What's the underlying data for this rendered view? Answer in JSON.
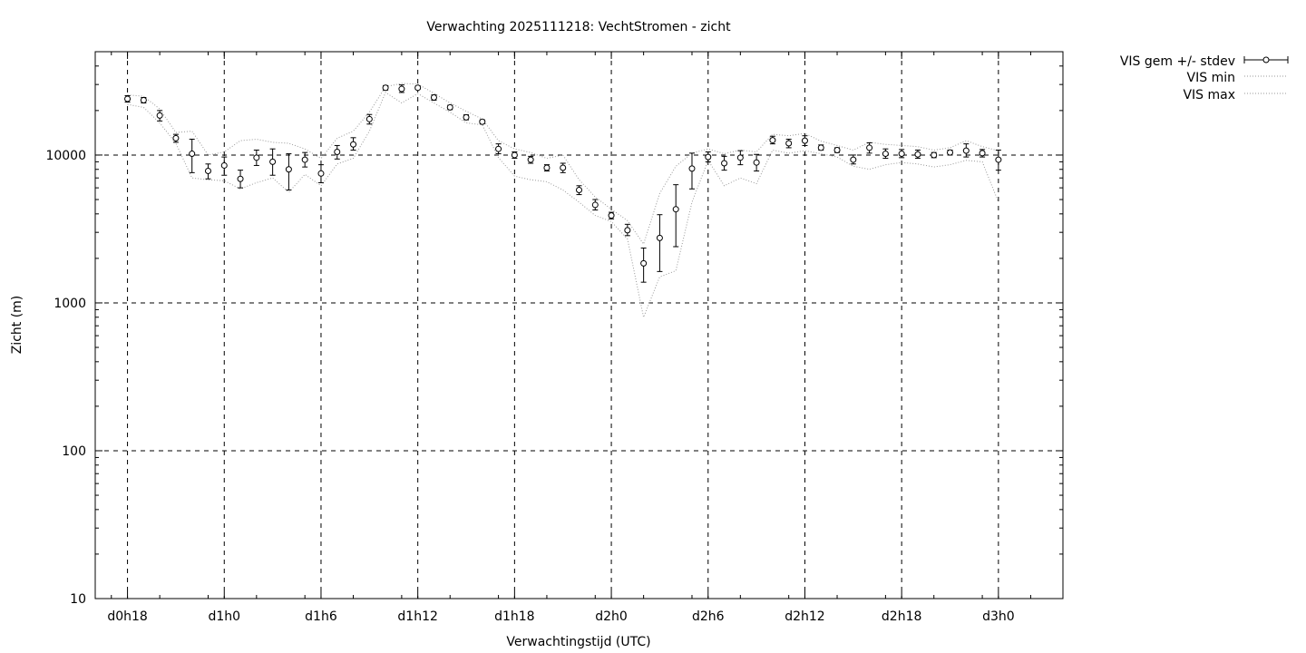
{
  "chart_data": {
    "type": "scatter",
    "title": "Verwachting 2025111218: VechtStromen - zicht",
    "xlabel": "Verwachtingstijd (UTC)",
    "ylabel": "Zicht (m)",
    "x_unit": "hours since d0h0",
    "xlim": [
      16,
      76
    ],
    "ylim": [
      10,
      50000
    ],
    "yscale": "log",
    "grid": true,
    "legend_position": "outside-top-right",
    "x_ticks": [
      {
        "x": 18,
        "label": "d0h18"
      },
      {
        "x": 24,
        "label": "d1h0"
      },
      {
        "x": 30,
        "label": "d1h6"
      },
      {
        "x": 36,
        "label": "d1h12"
      },
      {
        "x": 42,
        "label": "d1h18"
      },
      {
        "x": 48,
        "label": "d2h0"
      },
      {
        "x": 54,
        "label": "d2h6"
      },
      {
        "x": 60,
        "label": "d2h12"
      },
      {
        "x": 66,
        "label": "d2h18"
      },
      {
        "x": 72,
        "label": "d3h0"
      }
    ],
    "y_ticks": [
      {
        "y": 10,
        "label": "10"
      },
      {
        "y": 100,
        "label": "100"
      },
      {
        "y": 1000,
        "label": "1000"
      },
      {
        "y": 10000,
        "label": "10000"
      }
    ],
    "x": [
      18,
      19,
      20,
      21,
      22,
      23,
      24,
      25,
      26,
      27,
      28,
      29,
      30,
      31,
      32,
      33,
      34,
      35,
      36,
      37,
      38,
      39,
      40,
      41,
      42,
      43,
      44,
      45,
      46,
      47,
      48,
      49,
      50,
      51,
      52,
      53,
      54,
      55,
      56,
      57,
      58,
      59,
      60,
      61,
      62,
      63,
      64,
      65,
      66,
      67,
      68,
      69,
      70,
      71,
      72
    ],
    "series": [
      {
        "name": "VIS gem +/- stdev",
        "style": "errorbars",
        "values": [
          24000,
          23500,
          18500,
          13000,
          10200,
          7800,
          8500,
          6900,
          9600,
          9000,
          8000,
          9300,
          7500,
          10500,
          11800,
          17500,
          28500,
          28000,
          28500,
          24500,
          21000,
          18000,
          16800,
          11000,
          10000,
          9300,
          8200,
          8200,
          5800,
          4600,
          3900,
          3100,
          1850,
          2750,
          4300,
          8100,
          9700,
          8800,
          9600,
          8900,
          12600,
          12000,
          12500,
          11200,
          10800,
          9300,
          11200,
          10200,
          10200,
          10100,
          10000,
          10400,
          10700,
          10300,
          9300
        ],
        "error_low": [
          22800,
          22500,
          17000,
          12200,
          7600,
          6900,
          7300,
          6000,
          8500,
          7300,
          5800,
          8300,
          6500,
          9400,
          10800,
          16200,
          27500,
          26500,
          27800,
          23500,
          20300,
          17300,
          16300,
          10200,
          9500,
          8800,
          7800,
          7600,
          5400,
          4250,
          3700,
          2850,
          1380,
          1630,
          2400,
          5900,
          9000,
          7900,
          8600,
          7800,
          11900,
          11200,
          11600,
          10800,
          10400,
          8700,
          10300,
          9500,
          9600,
          9500,
          9600,
          10000,
          9700,
          9700,
          7900
        ],
        "error_high": [
          25200,
          24500,
          20000,
          13800,
          12800,
          8700,
          9700,
          7900,
          10800,
          11000,
          10200,
          10400,
          8600,
          11600,
          13100,
          18800,
          29500,
          29800,
          29300,
          25500,
          21700,
          18700,
          17300,
          11900,
          10500,
          9800,
          8600,
          8800,
          6200,
          5000,
          4100,
          3400,
          2350,
          3950,
          6300,
          10300,
          10500,
          9800,
          10700,
          10100,
          13400,
          12800,
          13500,
          11700,
          11200,
          10000,
          12100,
          11000,
          10900,
          10800,
          10400,
          10800,
          11900,
          10900,
          10800
        ]
      },
      {
        "name": "VIS min",
        "style": "dotted",
        "values": [
          22000,
          21000,
          16500,
          12000,
          7000,
          6800,
          6700,
          5900,
          6500,
          7000,
          5600,
          7400,
          6200,
          8700,
          9500,
          14500,
          26500,
          22500,
          26000,
          22500,
          19500,
          16500,
          16000,
          9600,
          7200,
          6800,
          6600,
          5800,
          4800,
          3900,
          3550,
          2700,
          800,
          1500,
          1650,
          4800,
          9200,
          6200,
          7000,
          6400,
          10800,
          10300,
          10700,
          10200,
          9700,
          8400,
          8000,
          8600,
          8900,
          8700,
          8300,
          8600,
          9200,
          9000,
          4800
        ]
      },
      {
        "name": "VIS max",
        "style": "dotted",
        "values": [
          25500,
          25000,
          20500,
          14200,
          14500,
          10000,
          10500,
          12500,
          12800,
          12200,
          12000,
          11000,
          9500,
          13000,
          14500,
          19500,
          29000,
          30500,
          30200,
          26200,
          22500,
          19800,
          17500,
          12500,
          11000,
          10400,
          9500,
          10000,
          6800,
          5200,
          4300,
          3600,
          2500,
          5500,
          8400,
          10300,
          11000,
          10200,
          10800,
          10500,
          13800,
          13500,
          14000,
          12400,
          11600,
          10800,
          12200,
          11800,
          11600,
          11400,
          10800,
          11200,
          12500,
          11400,
          10700
        ]
      }
    ]
  }
}
